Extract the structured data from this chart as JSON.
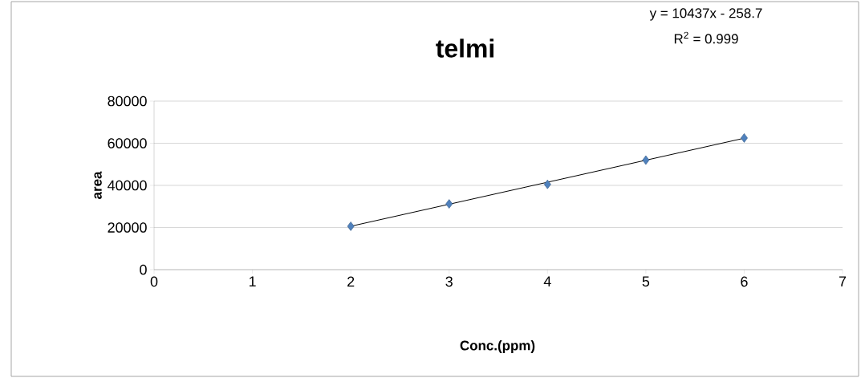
{
  "chart_data": {
    "type": "scatter",
    "title": "telmi",
    "xlabel": "Conc.(ppm)",
    "ylabel": "area",
    "annotations": [
      "y = 10437x - 258.7",
      "R$^{2}$ = 0.999"
    ],
    "x": [
      2,
      3,
      4,
      5,
      6
    ],
    "series": [
      {
        "color": "#4f81bd",
        "marker": "diamond",
        "values": [
          20600,
          31200,
          40500,
          52000,
          62500
        ]
      },
      {
        "type": "line",
        "color": "#000000",
        "marker": "none",
        "x": [
          2,
          6
        ],
        "values": [
          20600,
          62400
        ]
      }
    ],
    "xlim": [
      0,
      7
    ],
    "xticks": [
      0,
      1,
      2,
      3,
      4,
      5,
      6,
      7
    ],
    "ylim": [
      0,
      80000
    ],
    "yticks": [
      0,
      20000,
      40000,
      60000,
      80000
    ],
    "grid": "y"
  }
}
